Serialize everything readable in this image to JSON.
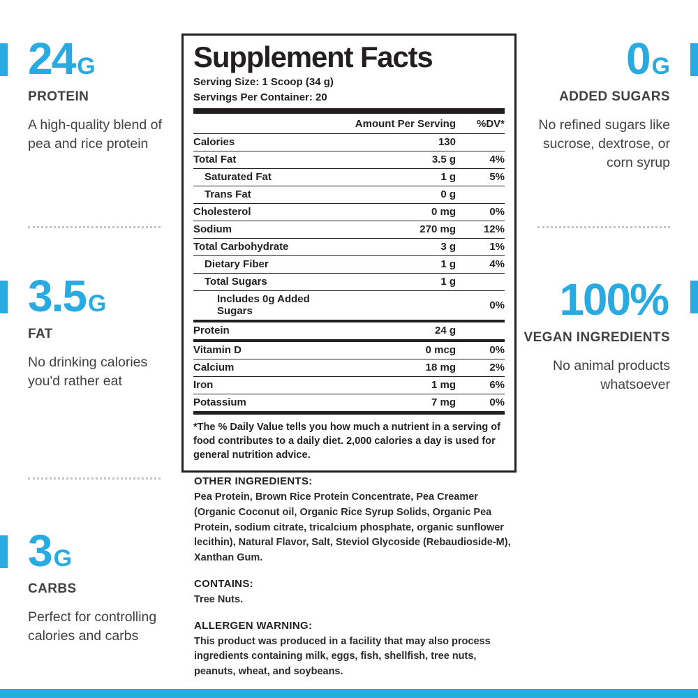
{
  "colors": {
    "accent": "#29ABE2",
    "text": "#414042",
    "panel_ink": "#231F20"
  },
  "callouts": {
    "left": [
      {
        "value": "24",
        "unit": "G",
        "label": "PROTEIN",
        "desc": "A high-quality blend of pea and rice protein"
      },
      {
        "value": "3.5",
        "unit": "G",
        "label": "FAT",
        "desc": "No drinking calories you'd rather eat"
      },
      {
        "value": "3",
        "unit": "G",
        "label": "CARBS",
        "desc": "Perfect for controlling calories and carbs"
      }
    ],
    "right": [
      {
        "value": "0",
        "unit": "G",
        "label": "ADDED SUGARS",
        "desc": "No refined sugars like sucrose, dextrose, or corn syrup"
      },
      {
        "value": "100%",
        "unit": "",
        "label": "VEGAN INGREDIENTS",
        "desc": "No animal products whatsoever"
      }
    ]
  },
  "panel": {
    "title": "Supplement Facts",
    "serving_size": "Serving Size: 1 Scoop (34 g)",
    "servings_per_container": "Servings Per Container: 20",
    "header": {
      "amount": "Amount Per Serving",
      "dv": "%DV*"
    },
    "rows": [
      {
        "name": "Calories",
        "amount": "130",
        "dv": "",
        "indent": 0,
        "top": "hair"
      },
      {
        "name": "Total Fat",
        "amount": "3.5 g",
        "dv": "4%",
        "indent": 0,
        "top": "hair"
      },
      {
        "name": "Saturated Fat",
        "amount": "1 g",
        "dv": "5%",
        "indent": 1,
        "top": "hair"
      },
      {
        "name": "Trans Fat",
        "amount": "0 g",
        "dv": "",
        "indent": 1,
        "top": "hair"
      },
      {
        "name": "Cholesterol",
        "amount": "0 mg",
        "dv": "0%",
        "indent": 0,
        "top": "hair"
      },
      {
        "name": "Sodium",
        "amount": "270 mg",
        "dv": "12%",
        "indent": 0,
        "top": "hair"
      },
      {
        "name": "Total Carbohydrate",
        "amount": "3 g",
        "dv": "1%",
        "indent": 0,
        "top": "hair"
      },
      {
        "name": "Dietary Fiber",
        "amount": "1 g",
        "dv": "4%",
        "indent": 1,
        "top": "hair"
      },
      {
        "name": "Total Sugars",
        "amount": "1 g",
        "dv": "",
        "indent": 1,
        "top": "hair"
      },
      {
        "name": "Includes 0g Added Sugars",
        "amount": "",
        "dv": "0%",
        "indent": 2,
        "top": "hair"
      },
      {
        "name": "Protein",
        "amount": "24 g",
        "dv": "",
        "indent": 0,
        "top": "med"
      },
      {
        "name": "Vitamin D",
        "amount": "0 mcg",
        "dv": "0%",
        "indent": 0,
        "top": "med"
      },
      {
        "name": "Calcium",
        "amount": "18 mg",
        "dv": "2%",
        "indent": 0,
        "top": "hair"
      },
      {
        "name": "Iron",
        "amount": "1 mg",
        "dv": "6%",
        "indent": 0,
        "top": "hair"
      },
      {
        "name": "Potassium",
        "amount": "7 mg",
        "dv": "0%",
        "indent": 0,
        "top": "hair"
      }
    ],
    "footnote": "*The % Daily Value tells you how much a nutrient in a serving of food contributes to a daily diet. 2,000 calories a day is used for general nutrition advice."
  },
  "ingredients": {
    "other_title": "OTHER INGREDIENTS:",
    "other_text": "Pea Protein, Brown Rice Protein Concentrate, Pea Creamer (Organic Coconut oil, Organic Rice Syrup Solids, Organic Pea Protein, sodium citrate, tricalcium phosphate, organic sunflower lecithin), Natural Flavor, Salt, Steviol Glycoside (Rebaudioside-M), Xanthan Gum.",
    "contains_title": "CONTAINS:",
    "contains_text": "Tree Nuts.",
    "allergen_title": "ALLERGEN WARNING:",
    "allergen_text": "This product was produced in a facility that may also process ingredients containing milk, eggs, fish, shellfish, tree nuts, peanuts, wheat, and soybeans."
  }
}
